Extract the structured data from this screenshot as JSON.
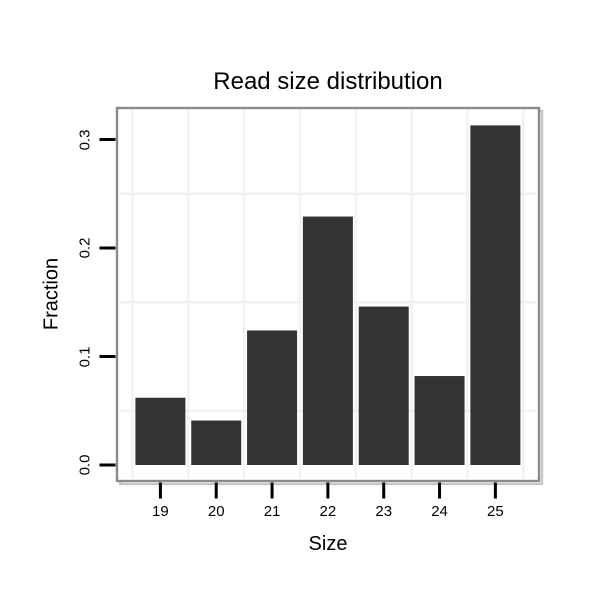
{
  "page": {
    "background": "#ffffff"
  },
  "chart_data": {
    "type": "bar",
    "title": "Read size distribution",
    "xlabel": "Size",
    "ylabel": "Fraction",
    "categories": [
      "19",
      "20",
      "21",
      "22",
      "23",
      "24",
      "25"
    ],
    "values": [
      0.062,
      0.041,
      0.124,
      0.229,
      0.146,
      0.082,
      0.313
    ],
    "y_tick_labels": [
      "0.0",
      "0.1",
      "0.2",
      "0.3"
    ],
    "y_tick_values": [
      0,
      0.1,
      0.2,
      0.3
    ],
    "y_minor_gridlines": [
      0.05,
      0.15,
      0.25
    ],
    "ylim": [
      -0.0145,
      0.3275
    ],
    "grid": true,
    "legend_position": "none",
    "colors": {
      "bar": "#333333",
      "panel_border": "#8a8a8a",
      "panel_shadow": "#c6c6c6",
      "gridline": "#f2f2f2",
      "tick": "#000000",
      "text": "#000000",
      "panel_background": "#ffffff"
    }
  }
}
